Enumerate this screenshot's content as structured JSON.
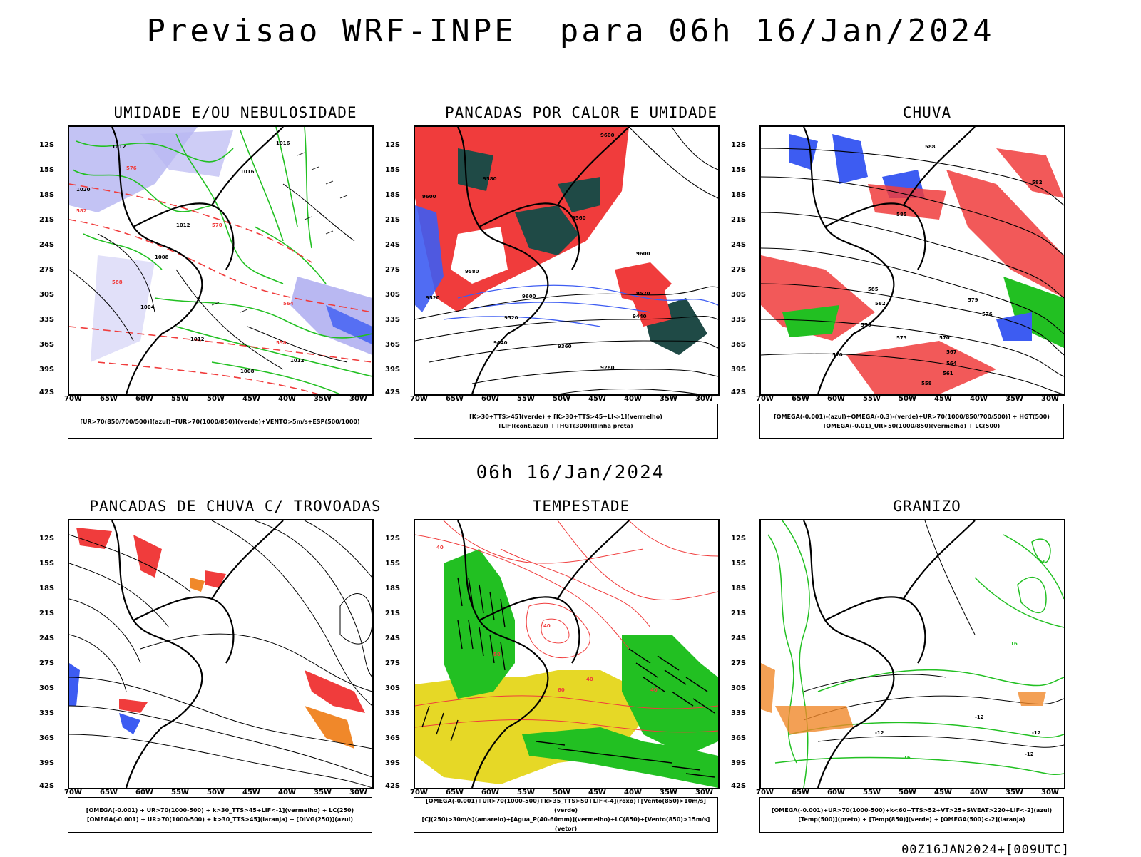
{
  "title": "Previsao WRF-INPE  para 06h 16/Jan/2024",
  "middle_title": "06h 16/Jan/2024",
  "footer": "00Z16JAN2024+[009UTC]",
  "axes": {
    "lat_labels": [
      "12S",
      "15S",
      "18S",
      "21S",
      "24S",
      "27S",
      "30S",
      "33S",
      "36S",
      "39S",
      "42S"
    ],
    "lon_labels": [
      "70W",
      "65W",
      "60W",
      "55W",
      "50W",
      "45W",
      "40W",
      "35W",
      "30W"
    ]
  },
  "colors": {
    "blue": "#3d5cf2",
    "lavender": "#b9b8f2",
    "green": "#22c022",
    "red": "#f03c3c",
    "darkteal": "#1f4a46",
    "yellow": "#e6d826",
    "orange": "#f0882a"
  },
  "panels": [
    {
      "title": "UMIDADE E/OU NEBULOSIDADE",
      "legend": [
        "[UR>70(850/700/500)](azul)+[UR>70(1000/850)](verde)+VENTO>5m/s+ESP(500/1000)"
      ],
      "contour_labels": [
        "1012",
        "1016",
        "1016",
        "1020",
        "1012",
        "1008",
        "1004",
        "1012",
        "1012",
        "1008",
        "576",
        "582",
        "588",
        "570",
        "564",
        "558"
      ]
    },
    {
      "title": "PANCADAS POR CALOR E UMIDADE",
      "legend": [
        "[K>30+TTS>45](verde) + [K>30+TTS>45+LI<-1](vermelho)",
        "[LIF](cont.azul) + [HGT(300)](linha preta)"
      ],
      "contour_labels": [
        "9600",
        "9580",
        "9560",
        "9520",
        "9600",
        "9600",
        "9520",
        "9440",
        "9360",
        "9280",
        "9440",
        "9520",
        "9580",
        "9600"
      ]
    },
    {
      "title": "CHUVA",
      "legend": [
        "[OMEGA(-0.001)-(azul)+OMEGA(-0.3)-(verde)+UR>70(1000/850/700/500)] + HGT(500)",
        "[OMEGA(-0.01)_UR>50(1000/850)(vermelho) + LC(500)"
      ],
      "contour_labels": [
        "588",
        "585",
        "585",
        "582",
        "579",
        "576",
        "573",
        "570",
        "567",
        "564",
        "561",
        "558",
        "570",
        "576",
        "582"
      ]
    },
    {
      "title": "PANCADAS DE CHUVA C/ TROVOADAS",
      "legend": [
        "[OMEGA(-0.001) + UR>70(1000-500) + k>30_TTS>45+LIF<-1](vermelho) + LC(250)",
        "[OMEGA(-0.001) + UR>70(1000-500) + k>30_TTS>45](laranja) + [DIVG(250)](azul)"
      ],
      "contour_labels": []
    },
    {
      "title": "TEMPESTADE",
      "legend": [
        "[OMEGA(-0.001)+UR>70(1000-500)+k>35_TTS>50+LIF<-4](roxo)+[Vento(850)>10m/s](verde)",
        "[CJ(250)>30m/s](amarelo)+[Agua_P(40-60mm)](vermelho)+LC(850)+[Vento(850)>15m/s](vetor)"
      ],
      "contour_labels": [
        "40",
        "40",
        "50",
        "60",
        "40",
        "40"
      ]
    },
    {
      "title": "GRANIZO",
      "legend": [
        "[OMEGA(-0.001)+UR>70(1000-500)+k<60+TTS>52+VT>25+SWEAT>220+LIF<-2](azul)",
        "[Temp(500)](preto) + [Temp(850)](verde) + [OMEGA(500)<-2](laranja)"
      ],
      "contour_labels": [
        "-12",
        "-12",
        "-12",
        "16",
        "16",
        "16",
        "-12"
      ]
    }
  ]
}
